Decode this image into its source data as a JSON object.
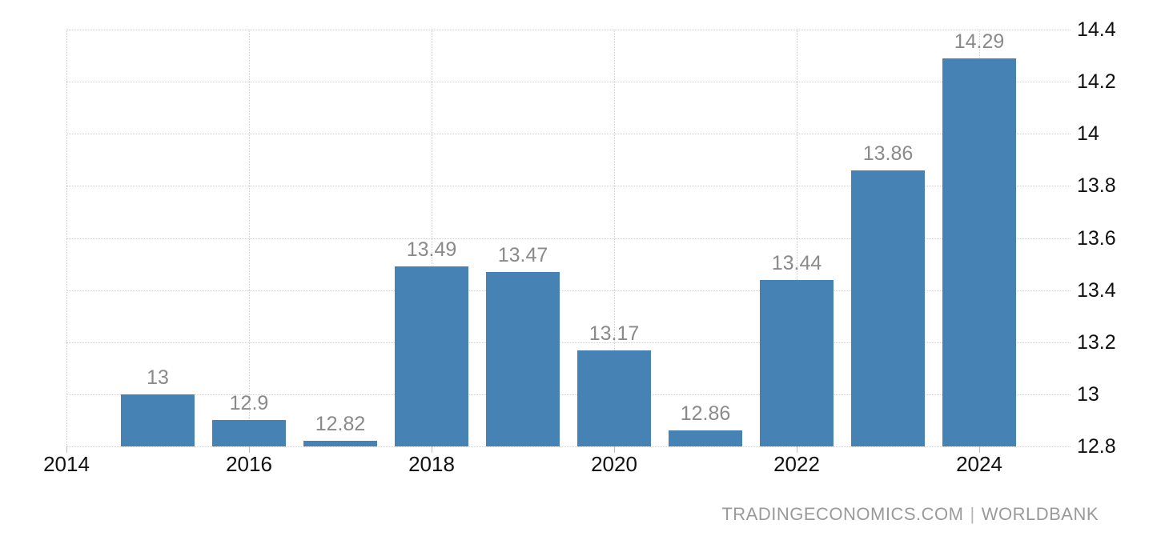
{
  "chart_data": {
    "type": "bar",
    "title": "",
    "xlabel": "",
    "ylabel": "",
    "categories": [
      2015,
      2016,
      2017,
      2018,
      2019,
      2020,
      2021,
      2022,
      2023,
      2024
    ],
    "values": [
      13,
      12.9,
      12.82,
      13.49,
      13.47,
      13.17,
      12.86,
      13.44,
      13.86,
      14.29
    ],
    "value_labels": [
      "13",
      "12.9",
      "12.82",
      "13.49",
      "13.47",
      "13.17",
      "12.86",
      "13.44",
      "13.86",
      "14.29"
    ],
    "xticks": [
      2014,
      2016,
      2018,
      2020,
      2022,
      2024
    ],
    "xtick_labels": [
      "2014",
      "2016",
      "2018",
      "2020",
      "2022",
      "2024"
    ],
    "yticks": [
      12.8,
      13,
      13.2,
      13.4,
      13.6,
      13.8,
      14,
      14.2,
      14.4
    ],
    "ytick_labels": [
      "12.8",
      "13",
      "13.2",
      "13.4",
      "13.6",
      "13.8",
      "14",
      "14.2",
      "14.4"
    ],
    "xlim": [
      2014,
      2025
    ],
    "ylim": [
      12.8,
      14.4
    ],
    "grid": true,
    "legend": "none",
    "y_axis_side": "right",
    "colors": {
      "bar": "#4682b4",
      "grid": "#d0d0d0",
      "tick": "#c0c0c0",
      "axis_text": "#111111",
      "value_label": "#8a8a8a"
    }
  },
  "footer": {
    "source": "TRADINGECONOMICS.COM",
    "separator": "|",
    "provider": "WORLDBANK",
    "color": "#9a9a9a",
    "separator_color": "#b5b5b5"
  }
}
